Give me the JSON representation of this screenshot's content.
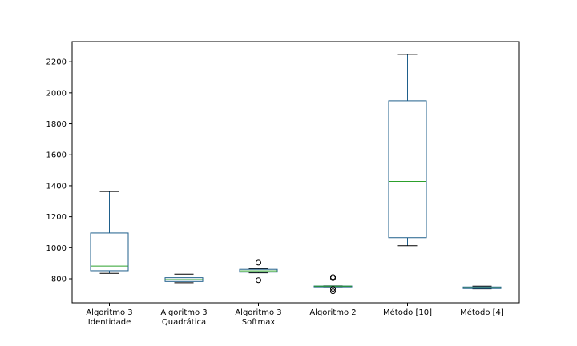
{
  "chart_data": {
    "type": "boxplot",
    "title": "",
    "xlabel": "",
    "ylabel": "",
    "ylim": [
      645,
      2330
    ],
    "yticks": [
      800,
      1000,
      1200,
      1400,
      1600,
      1800,
      2000,
      2200
    ],
    "grid": false,
    "legend": "none",
    "colors": {
      "box": "#1f5f8b",
      "median": "#2ca02c",
      "whisker": "#000000",
      "outlier": "#000000"
    },
    "categories": [
      {
        "lines": [
          "Algoritmo 3",
          "Identidade"
        ]
      },
      {
        "lines": [
          "Algoritmo 3",
          "Quadrática"
        ]
      },
      {
        "lines": [
          "Algoritmo 3",
          "Softmax"
        ]
      },
      {
        "lines": [
          "Algoritmo 2"
        ]
      },
      {
        "lines": [
          "Método [10]"
        ]
      },
      {
        "lines": [
          "Método [4]"
        ]
      }
    ],
    "boxes": [
      {
        "whislo": 835,
        "q1": 852,
        "med": 882,
        "q3": 1095,
        "whishi": 1363,
        "fliers": []
      },
      {
        "whislo": 775,
        "q1": 783,
        "med": 795,
        "q3": 807,
        "whishi": 830,
        "fliers": []
      },
      {
        "whislo": 838,
        "q1": 843,
        "med": 851,
        "q3": 861,
        "whishi": 865,
        "fliers": [
          791,
          904
        ]
      },
      {
        "whislo": 748,
        "q1": 749,
        "med": 752,
        "q3": 753,
        "whishi": 754,
        "fliers": [
          719,
          735,
          804,
          811
        ]
      },
      {
        "whislo": 1013,
        "q1": 1065,
        "med": 1428,
        "q3": 1948,
        "whishi": 2248,
        "fliers": []
      },
      {
        "whislo": 735,
        "q1": 737,
        "med": 742,
        "q3": 747,
        "whishi": 752,
        "fliers": []
      }
    ]
  }
}
